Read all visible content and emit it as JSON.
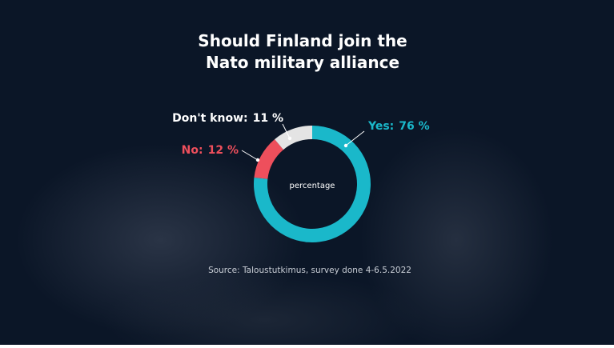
{
  "chart_data": {
    "type": "donut",
    "title": "Should Finland join the Nato military alliance",
    "center_label": "percentage",
    "source": "Source: Taloustutkimus, survey done 4-6.5.2022",
    "categories": [
      "Yes:",
      "No:",
      "Don't know:"
    ],
    "values": [
      76,
      12,
      11
    ],
    "value_labels": [
      "76 %",
      "12 %",
      "11 %"
    ],
    "colors": [
      "#1ab8ca",
      "#ee4f5c",
      "#e4e4e4"
    ]
  }
}
